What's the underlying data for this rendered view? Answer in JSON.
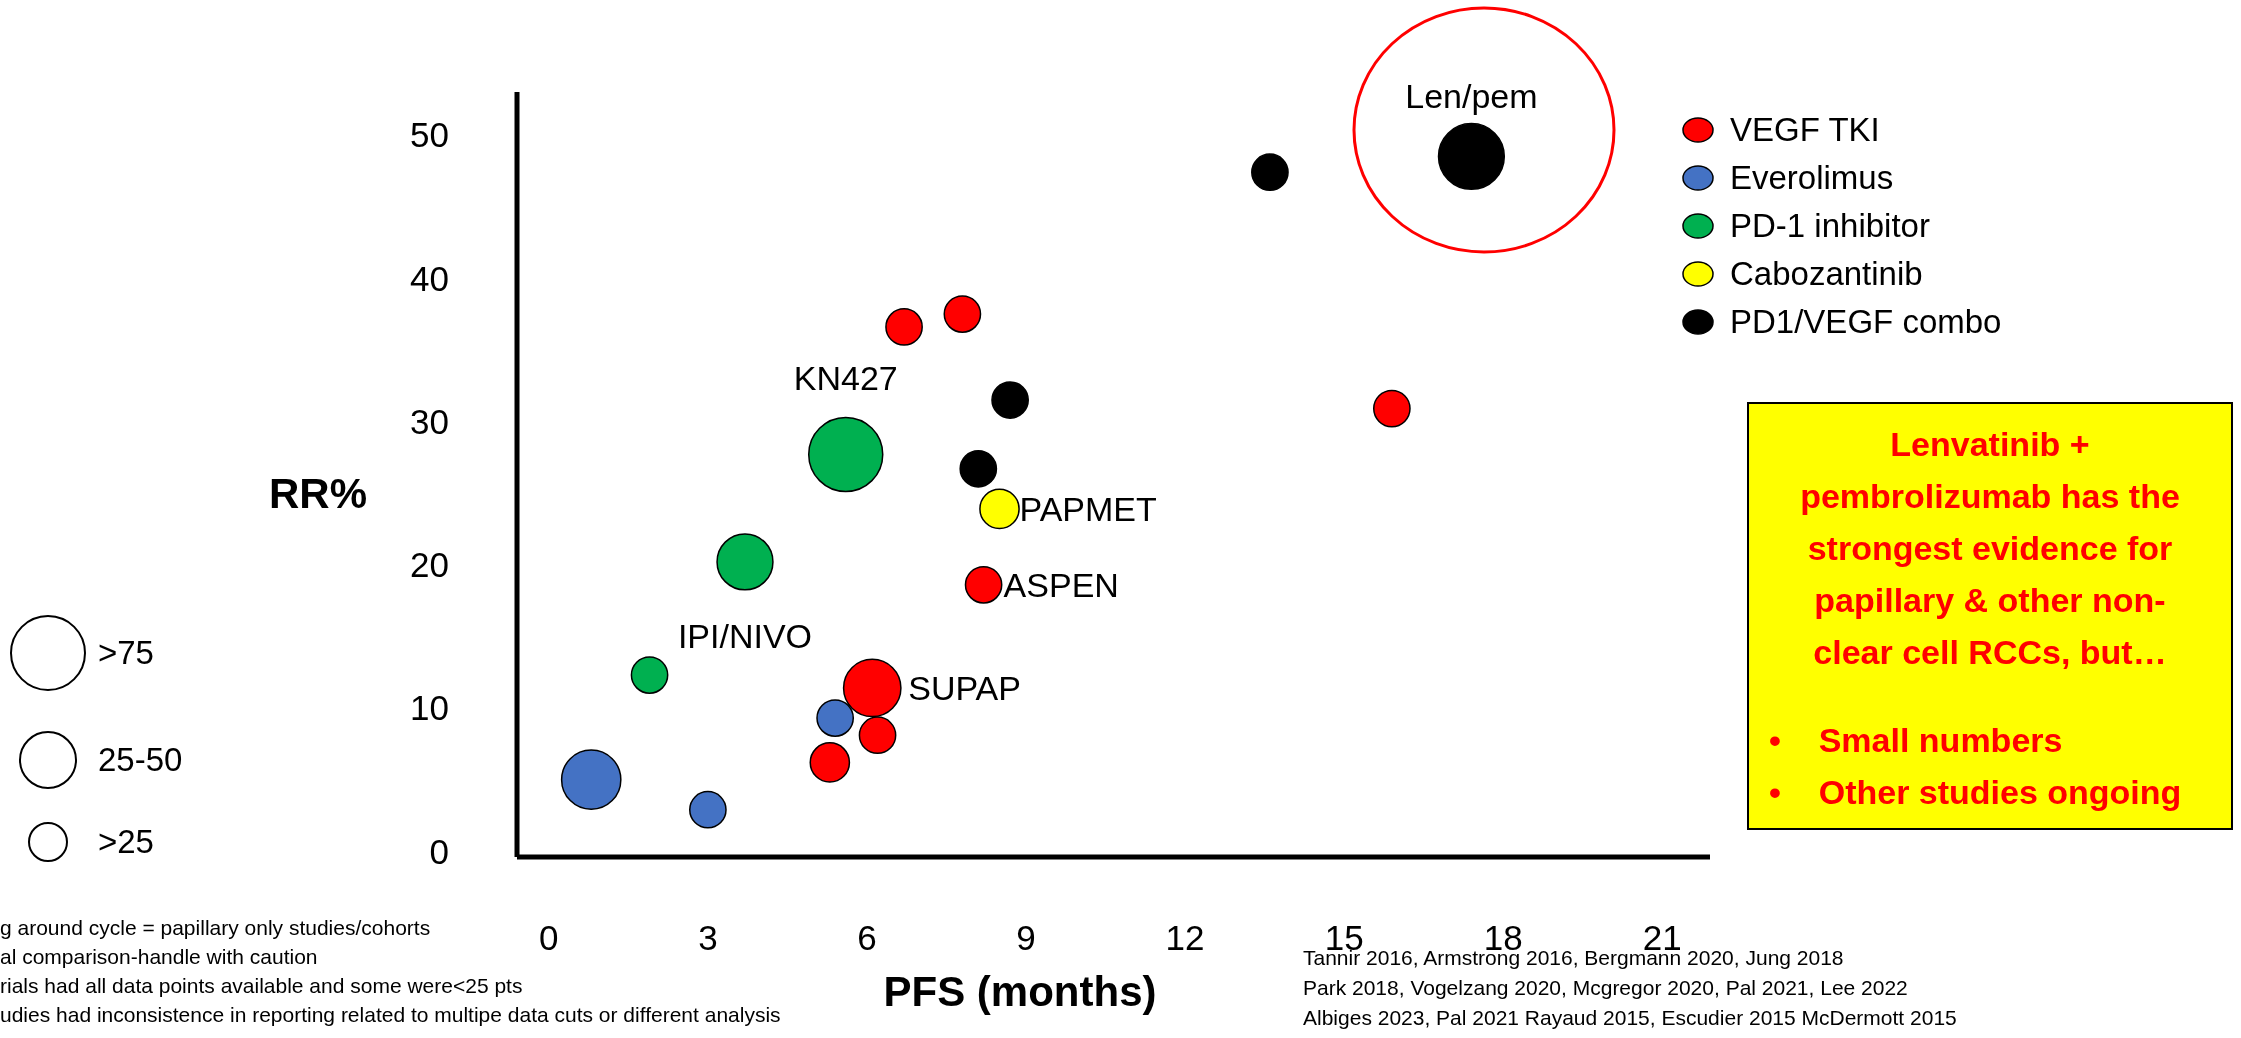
{
  "chart_data": {
    "type": "bubble",
    "xlabel": "PFS (months)",
    "ylabel": "RR%",
    "xlim": [
      -0.6,
      21.9
    ],
    "xticks": [
      0,
      3,
      6,
      9,
      12,
      15,
      18,
      21
    ],
    "ylim": [
      -0.4,
      53
    ],
    "yticks": [
      0,
      10,
      20,
      30,
      40,
      50
    ],
    "grid": false,
    "legend": "top right",
    "series": [
      {
        "name": "VEGF TKI",
        "color": "#ff0000",
        "x": [
          6.7,
          7.8,
          15.9,
          8.2,
          6.1,
          6.2,
          5.3
        ],
        "values": [
          36.6,
          37.5,
          30.9,
          18.6,
          11.4,
          8.1,
          6.2
        ],
        "sizes": [
          0.24,
          0.24,
          0.24,
          0.24,
          0.6,
          0.24,
          0.28
        ]
      },
      {
        "name": "Everolimus",
        "color": "#4472c4",
        "x": [
          5.4,
          0.8,
          3.0
        ],
        "values": [
          9.3,
          5.0,
          2.9
        ],
        "sizes": [
          0.24,
          0.64,
          0.24
        ]
      },
      {
        "name": "PD-1 inhibitor",
        "color": "#00b050",
        "x": [
          5.6,
          3.7,
          1.9
        ],
        "values": [
          27.7,
          20.2,
          12.3
        ],
        "sizes": [
          1,
          0.57,
          0.24
        ]
      },
      {
        "name": "Cabozantinib",
        "color": "#ffff00",
        "x": [
          8.5
        ],
        "values": [
          23.9
        ],
        "sizes": [
          0.28
        ]
      },
      {
        "name": "PD1/VEGF combo",
        "color": "#000000",
        "x": [
          17.4,
          13.6,
          8.7,
          8.1
        ],
        "values": [
          48.5,
          47.4,
          31.5,
          26.7
        ],
        "sizes": [
          0.79,
          0.24,
          0.24,
          0.24
        ]
      }
    ],
    "annotations": [
      {
        "text": "Len/pem",
        "x": 17.4,
        "y": 48.5
      },
      {
        "text": "KN427",
        "x": 5.6,
        "y": 27.7
      },
      {
        "text": "PAPMET",
        "x": 8.5,
        "y": 23.9
      },
      {
        "text": "ASPEN",
        "x": 8.2,
        "y": 18.6
      },
      {
        "text": "IPI/NIVO",
        "x": 3.7,
        "y": 20.2
      },
      {
        "text": "SUPAP",
        "x": 6.1,
        "y": 11.4
      },
      ">75",
      "25-50",
      ">25",
      "Lenvatinib + pembrolizumab has the strongest evidence for papillary & other non-clear cell RCCs, but…",
      "•    Small numbers",
      "•    Other studies ongoing",
      "g around cycle = papillary only studies/cohorts",
      "al comparison-handle with caution",
      "rials had all data points available and some were<25 pts",
      "udies had inconsistence in reporting related to multipe data cuts or different analysis",
      "Tannir 2016, Armstrong 2016, Bergmann 2020, Jung 2018",
      "Park 2018, Vogelzang 2020, Mcgregor 2020, Pal 2021, Lee 2022",
      "Albiges 2023, Pal 2021 Rayaud 2015, Escudier 2015 McDermott 2015"
    ]
  }
}
